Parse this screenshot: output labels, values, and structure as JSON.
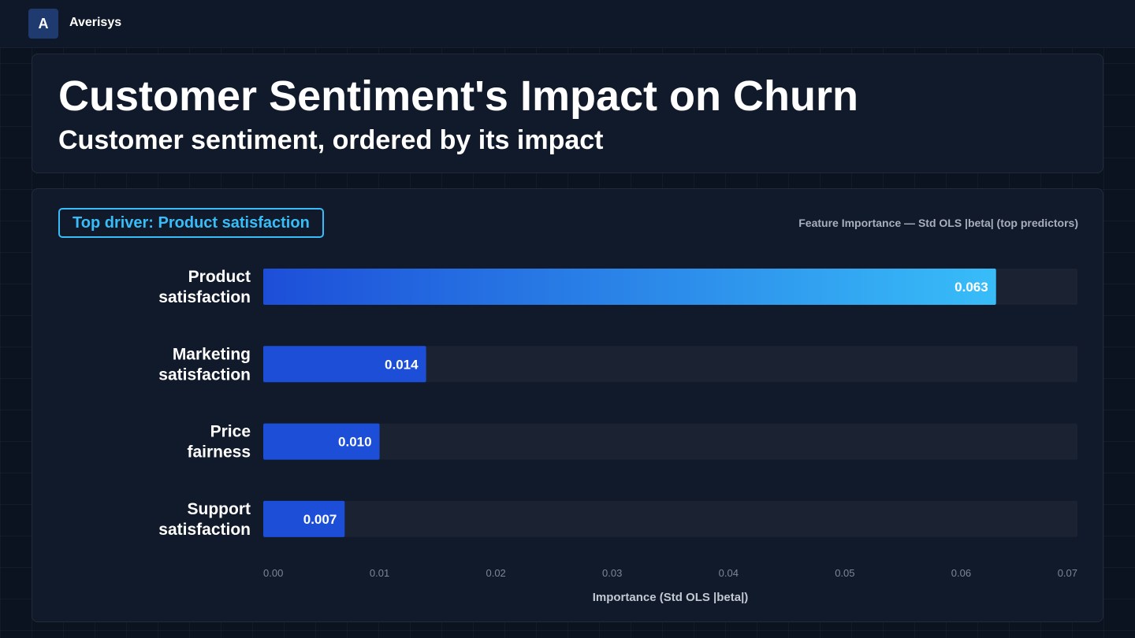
{
  "app": {
    "logo_letter": "A",
    "name": "Averisys"
  },
  "header": {
    "title": "Customer Sentiment's Impact on Churn",
    "subtitle": "Customer sentiment, ordered by its impact"
  },
  "chart_panel": {
    "badge": "Top driver: Product satisfaction",
    "caption": "Feature Importance — Std OLS |beta| (top predictors)"
  },
  "chart_data": {
    "type": "bar",
    "orientation": "horizontal",
    "categories": [
      [
        "Product",
        "satisfaction"
      ],
      [
        "Marketing",
        "satisfaction"
      ],
      [
        "Price",
        "fairness"
      ],
      [
        "Support",
        "satisfaction"
      ]
    ],
    "values": [
      0.063,
      0.014,
      0.01,
      0.007
    ],
    "value_labels": [
      "0.063",
      "0.014",
      "0.010",
      "0.007"
    ],
    "xlim": [
      0,
      0.07
    ],
    "xticks": [
      0.0,
      0.01,
      0.02,
      0.03,
      0.04,
      0.05,
      0.06,
      0.07
    ],
    "xtick_labels": [
      "0.00",
      "0.01",
      "0.02",
      "0.03",
      "0.04",
      "0.05",
      "0.06",
      "0.07"
    ],
    "xlabel": "Importance (Std OLS |beta|)",
    "grid": false,
    "colors": {
      "bar": "#1d4ed8",
      "bar_highlight_start": "#1d4ed8",
      "bar_highlight_end": "#38bdf8",
      "track": "#1b2231"
    }
  }
}
